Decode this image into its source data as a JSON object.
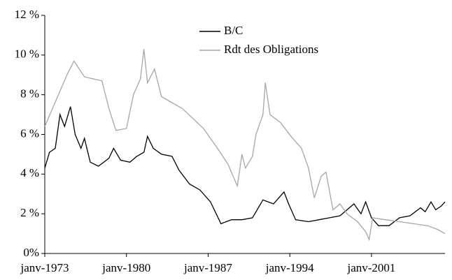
{
  "chart_data": {
    "type": "line",
    "xlim": [
      1973,
      2007.3
    ],
    "xticks": [
      {
        "value": 1973,
        "label": "janv-1973"
      },
      {
        "value": 1980,
        "label": "janv-1980"
      },
      {
        "value": 1987,
        "label": "janv-1987"
      },
      {
        "value": 1994,
        "label": "janv-1994"
      },
      {
        "value": 2001,
        "label": "janv-2001"
      }
    ],
    "ylim": [
      0,
      12
    ],
    "yticks": [
      {
        "value": 0,
        "label": "0%"
      },
      {
        "value": 2,
        "label": "2 %"
      },
      {
        "value": 4,
        "label": "4 %"
      },
      {
        "value": 6,
        "label": "6 %"
      },
      {
        "value": 8,
        "label": "8 %"
      },
      {
        "value": 10,
        "label": "10 %"
      },
      {
        "value": 12,
        "label": "12 %"
      }
    ],
    "series": [
      {
        "name": "B/C",
        "color": "#000000",
        "x": [
          1973,
          1973.4,
          1973.9,
          1974.3,
          1974.7,
          1975.2,
          1975.6,
          1976.1,
          1976.4,
          1976.9,
          1977.6,
          1978.5,
          1978.9,
          1979.5,
          1980.3,
          1980.9,
          1981.5,
          1981.8,
          1982.3,
          1983.0,
          1983.9,
          1984.5,
          1985.4,
          1986.3,
          1987.2,
          1988.1,
          1989.0,
          1989.9,
          1990.8,
          1991.7,
          1992.6,
          1993.5,
          1993.9,
          1994.5,
          1995.6,
          1996.5,
          1997.4,
          1998.3,
          1998.9,
          1999.5,
          2000.1,
          2000.5,
          2001.0,
          2001.6,
          2002.5,
          2003.4,
          2004.3,
          2005.2,
          2005.6,
          2006.1,
          2006.5,
          2007.0,
          2007.3
        ],
        "values": [
          4.3,
          5.1,
          5.3,
          7.0,
          6.4,
          7.4,
          6.0,
          5.3,
          5.8,
          4.6,
          4.4,
          4.8,
          5.3,
          4.7,
          4.6,
          4.9,
          5.1,
          5.9,
          5.3,
          5.0,
          4.9,
          4.2,
          3.5,
          3.2,
          2.6,
          1.5,
          1.7,
          1.7,
          1.8,
          2.7,
          2.5,
          3.1,
          2.5,
          1.7,
          1.6,
          1.7,
          1.8,
          1.9,
          2.2,
          2.5,
          2.0,
          2.6,
          1.8,
          1.4,
          1.4,
          1.8,
          1.9,
          2.3,
          2.1,
          2.6,
          2.2,
          2.4,
          2.6
        ]
      },
      {
        "name": "Rdt des Obligations",
        "color": "#a6a6a6",
        "x": [
          1973,
          1974.9,
          1975.5,
          1976.4,
          1977.9,
          1978.5,
          1979.1,
          1980.0,
          1980.6,
          1981.2,
          1981.5,
          1981.8,
          1982.4,
          1983.0,
          1983.9,
          1984.8,
          1985.7,
          1986.6,
          1987.8,
          1988.7,
          1989.5,
          1989.9,
          1990.2,
          1990.8,
          1991.1,
          1991.7,
          1991.9,
          1992.3,
          1993.2,
          1994.1,
          1995.0,
          1995.6,
          1996.1,
          1996.7,
          1997.1,
          1997.7,
          1998.3,
          1998.9,
          1999.8,
          2000.5,
          2000.8,
          2001.1,
          2002.2,
          2003.4,
          2004.6,
          2005.8,
          2006.7,
          2007.3
        ],
        "values": [
          6.4,
          9.0,
          9.7,
          8.9,
          8.7,
          7.3,
          6.2,
          6.3,
          8.0,
          8.8,
          10.3,
          8.6,
          9.3,
          7.9,
          7.6,
          7.3,
          6.8,
          6.3,
          5.3,
          4.5,
          3.4,
          5.0,
          4.3,
          4.9,
          6.0,
          7.0,
          8.6,
          7.0,
          6.6,
          5.9,
          5.3,
          4.3,
          2.8,
          3.9,
          4.1,
          2.2,
          2.5,
          2.0,
          1.6,
          1.1,
          0.7,
          1.8,
          1.7,
          1.6,
          1.5,
          1.4,
          1.2,
          1.0
        ]
      }
    ]
  }
}
